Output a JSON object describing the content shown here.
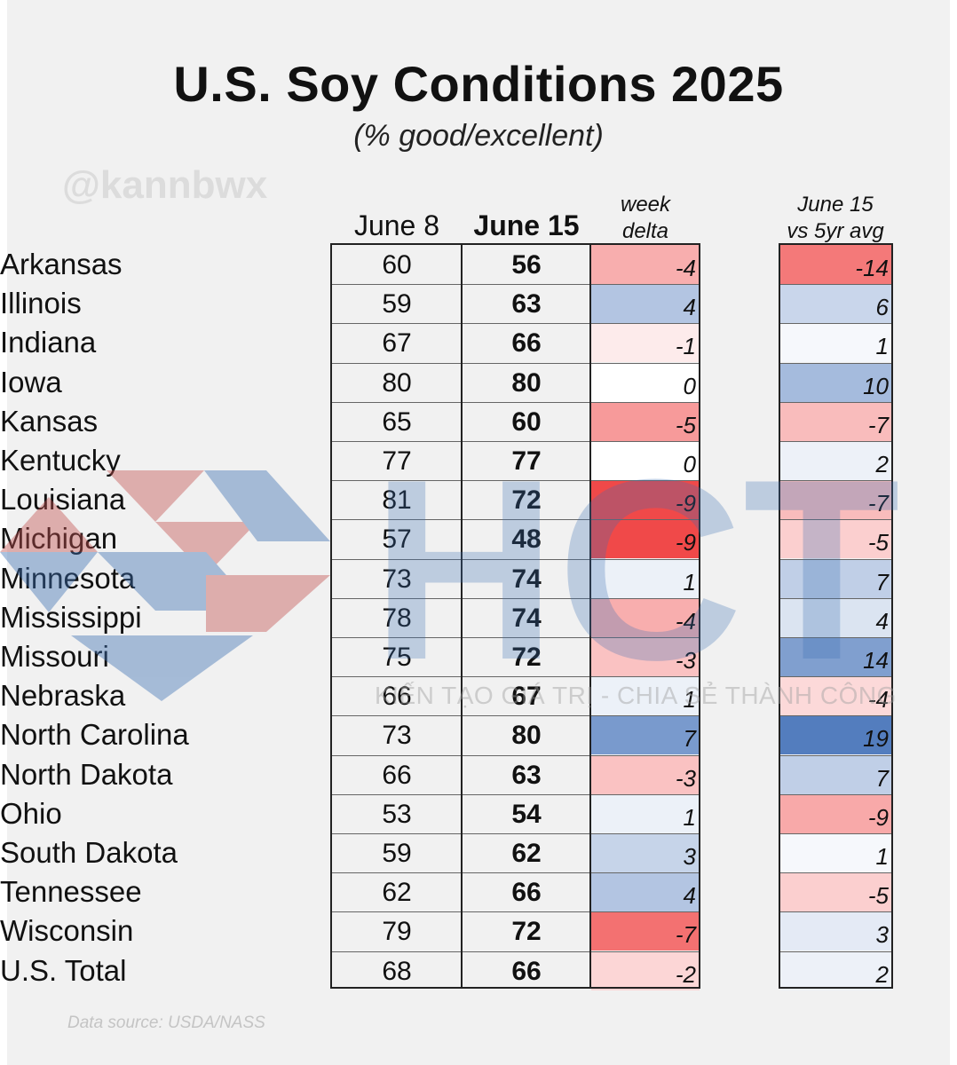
{
  "chart_data": {
    "type": "table",
    "title": "U.S. Soy Conditions 2025",
    "subtitle": "(% good/excellent)",
    "columns": [
      "June 8",
      "June 15",
      "week delta",
      "June 15 vs 5yr avg"
    ],
    "rows": [
      {
        "state": "Arkansas",
        "june8": 60,
        "june15": 56,
        "week_delta": -4,
        "vs_5yr_avg": -14
      },
      {
        "state": "Illinois",
        "june8": 59,
        "june15": 63,
        "week_delta": 4,
        "vs_5yr_avg": 6
      },
      {
        "state": "Indiana",
        "june8": 67,
        "june15": 66,
        "week_delta": -1,
        "vs_5yr_avg": 1
      },
      {
        "state": "Iowa",
        "june8": 80,
        "june15": 80,
        "week_delta": 0,
        "vs_5yr_avg": 10
      },
      {
        "state": "Kansas",
        "june8": 65,
        "june15": 60,
        "week_delta": -5,
        "vs_5yr_avg": -7
      },
      {
        "state": "Kentucky",
        "june8": 77,
        "june15": 77,
        "week_delta": 0,
        "vs_5yr_avg": 2
      },
      {
        "state": "Louisiana",
        "june8": 81,
        "june15": 72,
        "week_delta": -9,
        "vs_5yr_avg": -7
      },
      {
        "state": "Michigan",
        "june8": 57,
        "june15": 48,
        "week_delta": -9,
        "vs_5yr_avg": -5
      },
      {
        "state": "Minnesota",
        "june8": 73,
        "june15": 74,
        "week_delta": 1,
        "vs_5yr_avg": 7
      },
      {
        "state": "Mississippi",
        "june8": 78,
        "june15": 74,
        "week_delta": -4,
        "vs_5yr_avg": 4
      },
      {
        "state": "Missouri",
        "june8": 75,
        "june15": 72,
        "week_delta": -3,
        "vs_5yr_avg": 14
      },
      {
        "state": "Nebraska",
        "june8": 66,
        "june15": 67,
        "week_delta": 1,
        "vs_5yr_avg": -4
      },
      {
        "state": "North Carolina",
        "june8": 73,
        "june15": 80,
        "week_delta": 7,
        "vs_5yr_avg": 19
      },
      {
        "state": "North Dakota",
        "june8": 66,
        "june15": 63,
        "week_delta": -3,
        "vs_5yr_avg": 7
      },
      {
        "state": "Ohio",
        "june8": 53,
        "june15": 54,
        "week_delta": 1,
        "vs_5yr_avg": -9
      },
      {
        "state": "South Dakota",
        "june8": 59,
        "june15": 62,
        "week_delta": 3,
        "vs_5yr_avg": 1
      },
      {
        "state": "Tennessee",
        "june8": 62,
        "june15": 66,
        "week_delta": 4,
        "vs_5yr_avg": -5
      },
      {
        "state": "Wisconsin",
        "june8": 79,
        "june15": 72,
        "week_delta": -7,
        "vs_5yr_avg": 3
      },
      {
        "state": "U.S. Total",
        "june8": 68,
        "june15": 66,
        "week_delta": -2,
        "vs_5yr_avg": 2
      }
    ],
    "colors": {
      "positive": "#4a76bb",
      "negative": "#ef3f3f",
      "neutral": "#ffffff"
    }
  },
  "header": {
    "title": "U.S. Soy Conditions 2025",
    "subtitle": "(% good/excellent)",
    "handle": "@kannbwx",
    "col_june8": "June 8",
    "col_june15": "June 15",
    "col_delta_1": "week",
    "col_delta_2": "delta",
    "col_avg_1": "June 15",
    "col_avg_2": "vs 5yr avg"
  },
  "watermark": {
    "letters": "HCT",
    "tagline": "KIẾN TẠO GIÁ TRỊ - CHIA SẺ THÀNH CÔNG"
  },
  "footer": {
    "source": "Data source: USDA/NASS"
  }
}
